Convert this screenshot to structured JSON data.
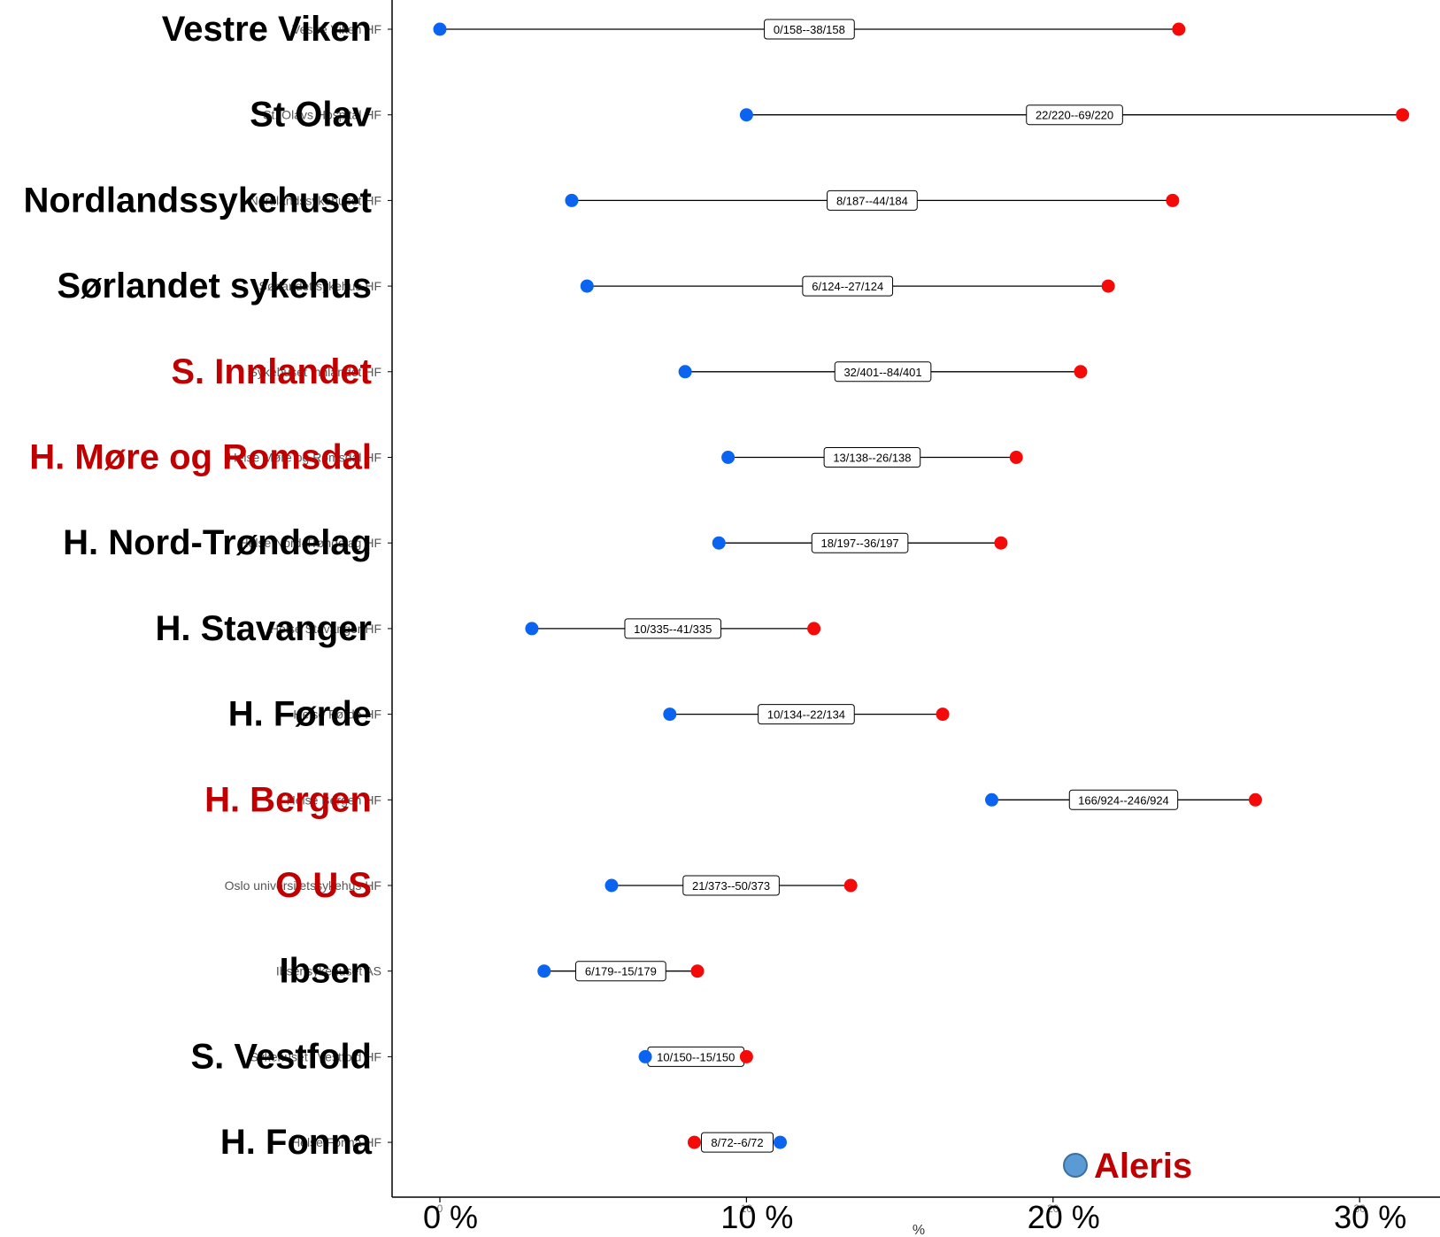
{
  "colors": {
    "blue_dot": "#0a64f0",
    "red_dot": "#f50a0a",
    "black_label": "#000000",
    "red_label": "#c00000",
    "legend_dot": "#5b9bd5",
    "legend_dot_stroke": "#3a6fa0"
  },
  "chart_data": {
    "type": "dumbbell",
    "title": "",
    "xlabel": "%",
    "ylabel": "",
    "xlim": [
      -1.5,
      32.5
    ],
    "x_ticks_big": [
      "0 %",
      "10 %",
      "20 %",
      "30 %"
    ],
    "x_tick_values": [
      0,
      10,
      20,
      30
    ],
    "x_ticks_small": [
      "0",
      "10",
      "20",
      "30"
    ],
    "legend": {
      "label": "Aleris",
      "position": "bottom-right"
    },
    "rows": [
      {
        "label": "Vestre Viken",
        "sublabel": "Vestre Viken HF",
        "label_color": "black",
        "blue": 0.0,
        "red": 24.1,
        "box": "0/158--38/158"
      },
      {
        "label": "St Olav",
        "sublabel": "St. Olavs Hospital HF",
        "label_color": "black",
        "blue": 10.0,
        "red": 31.4,
        "box": "22/220--69/220"
      },
      {
        "label": "Nordlandssykehuset",
        "sublabel": "Nordlandssykehuset HF",
        "label_color": "black",
        "blue": 4.3,
        "red": 23.9,
        "box": "8/187--44/184"
      },
      {
        "label": "Sørlandet sykehus",
        "sublabel": "Sørlandet sykehus HF",
        "label_color": "black",
        "blue": 4.8,
        "red": 21.8,
        "box": "6/124--27/124"
      },
      {
        "label": "S. Innlandet",
        "sublabel": "Sykehuset Innlandet HF",
        "label_color": "red",
        "blue": 8.0,
        "red": 20.9,
        "box": "32/401--84/401"
      },
      {
        "label": "H. Møre og Romsdal",
        "sublabel": "Helse Møre og Romsdal HF",
        "label_color": "red",
        "blue": 9.4,
        "red": 18.8,
        "box": "13/138--26/138"
      },
      {
        "label": "H. Nord-Trøndelag",
        "sublabel": "Helse Nord-Trøndelag HF",
        "label_color": "black",
        "blue": 9.1,
        "red": 18.3,
        "box": "18/197--36/197"
      },
      {
        "label": "H. Stavanger",
        "sublabel": "Helse Stavanger HF",
        "label_color": "black",
        "blue": 3.0,
        "red": 12.2,
        "box": "10/335--41/335"
      },
      {
        "label": "H. Førde",
        "sublabel": "Helse Førde HF",
        "label_color": "black",
        "blue": 7.5,
        "red": 16.4,
        "box": "10/134--22/134"
      },
      {
        "label": "H. Bergen",
        "sublabel": "Helse Bergen HF",
        "label_color": "red",
        "blue": 18.0,
        "red": 26.6,
        "box": "166/924--246/924"
      },
      {
        "label": "O U S",
        "sublabel": "Oslo universitetssykehus HF",
        "label_color": "red",
        "blue": 5.6,
        "red": 13.4,
        "box": "21/373--50/373"
      },
      {
        "label": "Ibsen",
        "sublabel": "Ibsensykehuset AS",
        "label_color": "black",
        "blue": 3.4,
        "red": 8.4,
        "box": "6/179--15/179"
      },
      {
        "label": "S. Vestfold",
        "sublabel": "Sykehuset i Vestfold HF",
        "label_color": "black",
        "blue": 6.7,
        "red": 10.0,
        "box": "10/150--15/150"
      },
      {
        "label": "H. Fonna",
        "sublabel": "Helse Fonna HF",
        "label_color": "black",
        "blue": 11.1,
        "red": 8.3,
        "box": "8/72--6/72"
      }
    ]
  }
}
